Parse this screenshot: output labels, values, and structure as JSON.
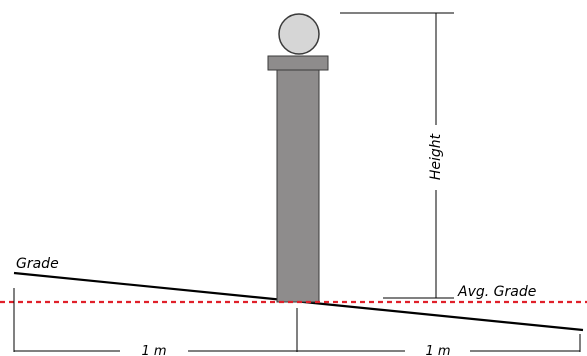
{
  "labels": {
    "grade": "Grade",
    "avg_grade": "Avg. Grade",
    "height": "Height",
    "left_span": "1 m",
    "right_span": "1 m"
  },
  "colors": {
    "post_fill": "#8e8c8c",
    "post_stroke": "#3a3a3a",
    "cap_fill": "#8e8c8c",
    "ball_fill": "#d6d6d6",
    "ball_stroke": "#3a3a3a",
    "grade_line": "#000000",
    "avg_grade_line": "#e0202a",
    "dimension_line": "#000000"
  }
}
